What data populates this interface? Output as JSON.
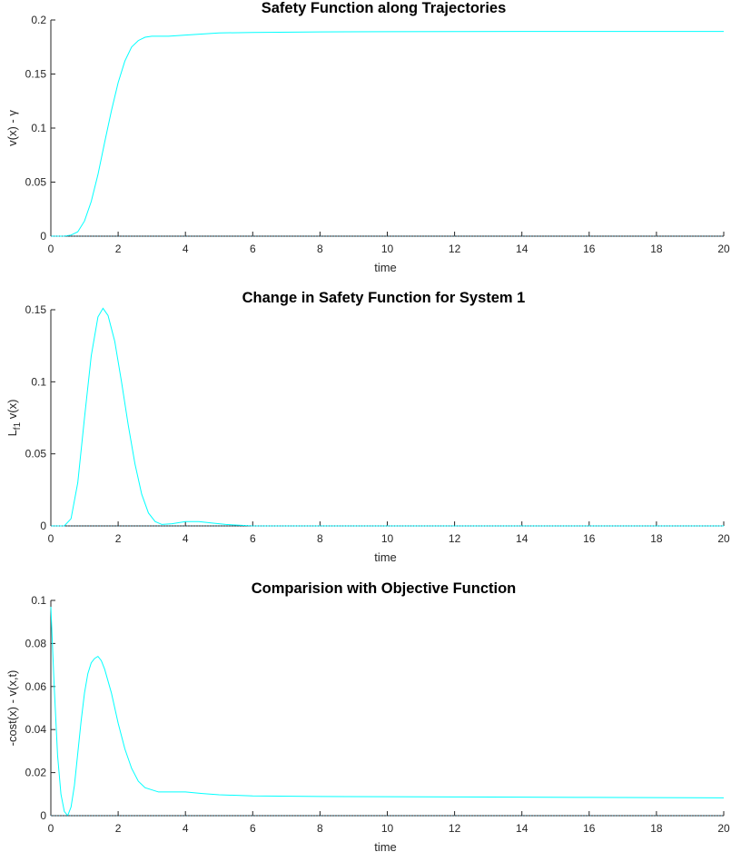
{
  "chart_data": [
    {
      "type": "line",
      "title": "Safety Function along Trajectories",
      "xlabel": "time",
      "ylabel": "v(x) - γ",
      "xlim": [
        0,
        20
      ],
      "ylim": [
        0,
        0.2
      ],
      "xticks": [
        "0",
        "2",
        "4",
        "6",
        "8",
        "10",
        "12",
        "14",
        "16",
        "18",
        "20"
      ],
      "yticks": [
        "0",
        "0.05",
        "0.1",
        "0.15",
        "0.2"
      ],
      "grid": false,
      "color": "#00ffff",
      "series": [
        {
          "x": [
            0,
            0.4,
            0.6,
            0.8,
            1.0,
            1.2,
            1.4,
            1.6,
            1.8,
            2.0,
            2.2,
            2.4,
            2.6,
            2.8,
            3.0,
            3.5,
            4.0,
            5.0,
            6.0,
            8.0,
            10,
            12,
            14,
            16,
            18,
            20
          ],
          "y": [
            0,
            0,
            0.001,
            0.004,
            0.014,
            0.032,
            0.057,
            0.087,
            0.116,
            0.142,
            0.162,
            0.175,
            0.181,
            0.184,
            0.185,
            0.185,
            0.186,
            0.188,
            0.1885,
            0.189,
            0.1892,
            0.1893,
            0.1894,
            0.1894,
            0.1894,
            0.1894
          ]
        },
        {
          "x": [
            0,
            20
          ],
          "y": [
            0,
            0
          ],
          "style": "dotted"
        }
      ]
    },
    {
      "type": "line",
      "title": "Change in Safety Function for System 1",
      "xlabel": "time",
      "ylabel": "L_f1 v(x)",
      "ylabel_main": "L",
      "ylabel_sub": "f1",
      "ylabel_tail": " v(x)",
      "xlim": [
        0,
        20
      ],
      "ylim": [
        0,
        0.15
      ],
      "xticks": [
        "0",
        "2",
        "4",
        "6",
        "8",
        "10",
        "12",
        "14",
        "16",
        "18",
        "20"
      ],
      "yticks": [
        "0",
        "0.05",
        "0.1",
        "0.15"
      ],
      "grid": false,
      "color": "#00ffff",
      "series": [
        {
          "x": [
            0,
            0.4,
            0.6,
            0.8,
            1.0,
            1.2,
            1.4,
            1.55,
            1.7,
            1.9,
            2.1,
            2.3,
            2.5,
            2.7,
            2.9,
            3.1,
            3.3,
            3.6,
            4.0,
            4.4,
            4.8,
            5.2,
            6.0,
            8.0,
            10,
            12,
            14,
            16,
            18,
            20
          ],
          "y": [
            0,
            0,
            0.005,
            0.03,
            0.075,
            0.118,
            0.145,
            0.151,
            0.146,
            0.128,
            0.1,
            0.07,
            0.043,
            0.022,
            0.009,
            0.003,
            0.001,
            0.0015,
            0.003,
            0.003,
            0.002,
            0.001,
            0,
            0,
            0,
            0,
            0,
            0,
            0,
            0
          ]
        },
        {
          "x": [
            0,
            20
          ],
          "y": [
            0,
            0
          ],
          "style": "dotted"
        }
      ]
    },
    {
      "type": "line",
      "title": "Comparision with Objective Function",
      "xlabel": "time",
      "ylabel": "-cost(x) - v(x,t)",
      "xlim": [
        0,
        20
      ],
      "ylim": [
        0,
        0.1
      ],
      "xticks": [
        "0",
        "2",
        "4",
        "6",
        "8",
        "10",
        "12",
        "14",
        "16",
        "18",
        "20"
      ],
      "yticks": [
        "0",
        "0.02",
        "0.04",
        "0.06",
        "0.08",
        "0.1"
      ],
      "grid": false,
      "color": "#00ffff",
      "series": [
        {
          "x": [
            0,
            0.1,
            0.2,
            0.3,
            0.4,
            0.5,
            0.6,
            0.7,
            0.8,
            0.9,
            1.0,
            1.1,
            1.2,
            1.3,
            1.4,
            1.5,
            1.6,
            1.8,
            2.0,
            2.2,
            2.4,
            2.6,
            2.8,
            3.0,
            3.2,
            3.5,
            4.0,
            4.5,
            5.0,
            6.0,
            8.0,
            10,
            12,
            14,
            16,
            18,
            20
          ],
          "y": [
            0.097,
            0.06,
            0.028,
            0.01,
            0.002,
            0,
            0.004,
            0.014,
            0.029,
            0.044,
            0.057,
            0.066,
            0.071,
            0.073,
            0.074,
            0.072,
            0.068,
            0.057,
            0.043,
            0.031,
            0.022,
            0.016,
            0.013,
            0.012,
            0.011,
            0.011,
            0.011,
            0.0103,
            0.0097,
            0.0092,
            0.0089,
            0.0088,
            0.0087,
            0.0086,
            0.0085,
            0.0084,
            0.0083
          ]
        },
        {
          "x": [
            0,
            20
          ],
          "y": [
            0,
            0
          ],
          "style": "dotted"
        }
      ]
    }
  ]
}
